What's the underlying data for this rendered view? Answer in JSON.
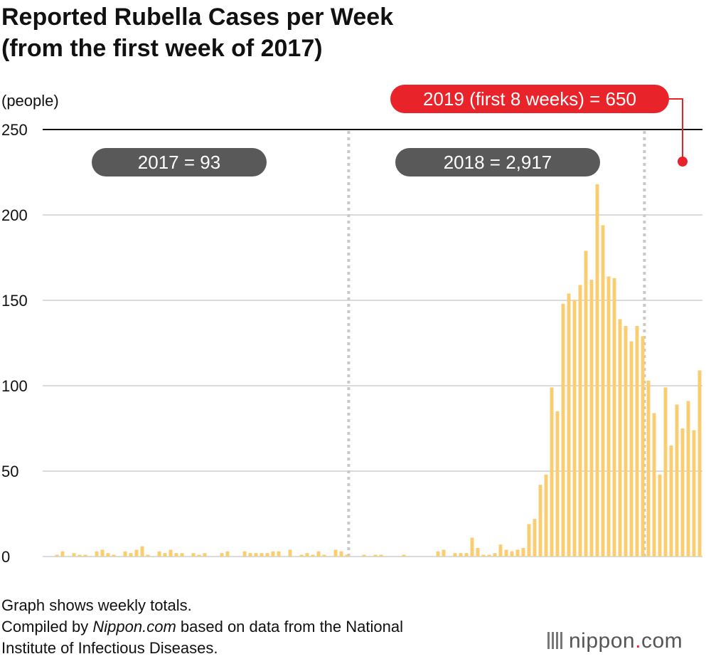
{
  "title_line1": "Reported Rubella Cases per Week",
  "title_line2": "(from the first week of 2017)",
  "note": {
    "line1": "Graph shows weekly totals.",
    "line2_pre": "Compiled by ",
    "line2_em": "Nippon.com",
    "line2_post": " based on data from the National",
    "line3": "Institute of Infectious Diseases."
  },
  "logo": {
    "name": "nippon",
    "dot": ".",
    "tld": "com"
  },
  "colors": {
    "bar": "#f9cd72",
    "annotation_red": "#e8232a",
    "annotation_gray": "#595959",
    "divider": "#c8c8c8"
  },
  "chart_data": {
    "type": "bar",
    "ylabel": "(people)",
    "ylim": [
      0,
      250
    ],
    "yticks": [
      0,
      50,
      100,
      150,
      200,
      250
    ],
    "grid": true,
    "year_boundaries_after_week_index": [
      52,
      104
    ],
    "annotations": [
      {
        "label": "2017 = 93",
        "style": "gray"
      },
      {
        "label": "2018 = 2,917",
        "style": "gray"
      },
      {
        "label": "2019 (first 8 weeks) = 650",
        "style": "red"
      }
    ],
    "values": [
      1,
      3,
      0,
      2,
      1,
      1,
      0,
      3,
      4,
      2,
      1,
      0,
      3,
      2,
      4,
      6,
      1,
      0,
      3,
      2,
      4,
      2,
      2,
      0,
      2,
      1,
      2,
      0,
      0,
      2,
      3,
      0,
      0,
      3,
      2,
      2,
      2,
      2,
      3,
      3,
      0,
      4,
      0,
      1,
      2,
      1,
      3,
      1,
      0,
      4,
      3,
      1,
      0,
      0,
      1,
      0,
      1,
      1,
      0,
      0,
      0,
      1,
      0,
      0,
      0,
      0,
      0,
      3,
      4,
      0,
      2,
      2,
      2,
      11,
      5,
      1,
      1,
      2,
      7,
      4,
      3,
      4,
      5,
      19,
      22,
      42,
      48,
      99,
      85,
      148,
      154,
      150,
      159,
      179,
      162,
      218,
      194,
      164,
      163,
      139,
      135,
      126,
      135,
      129,
      103,
      84,
      48,
      99,
      65,
      89,
      75,
      91,
      74,
      109
    ]
  }
}
